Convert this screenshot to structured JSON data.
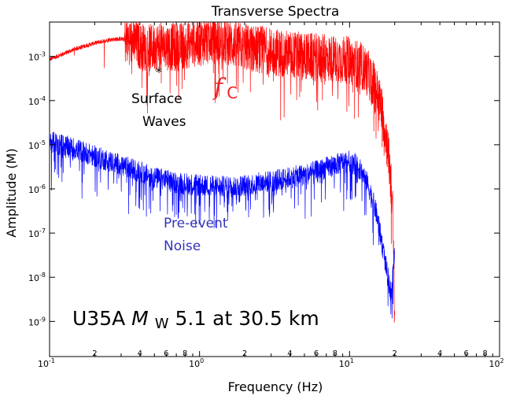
{
  "chart_data": {
    "type": "line",
    "title": "Transverse Spectra",
    "xlabel": "Frequency (Hz)",
    "ylabel": "Amplitude (M)",
    "xscale": "log",
    "yscale": "log",
    "xlim": [
      0.1,
      100
    ],
    "ylim": [
      1.6e-10,
      0.006
    ],
    "grid": false,
    "x_tick_labels": [
      {
        "value": 0.1,
        "base": "10",
        "exp": "-1"
      },
      {
        "value": 1,
        "base": "10",
        "exp": "0"
      },
      {
        "value": 10,
        "base": "10",
        "exp": "1"
      },
      {
        "value": 100,
        "base": "10",
        "exp": "2"
      }
    ],
    "x_minor_labels": [
      {
        "value": 0.2,
        "label": "2"
      },
      {
        "value": 0.4,
        "label": "4"
      },
      {
        "value": 0.6,
        "label": "6"
      },
      {
        "value": 0.8,
        "label": "8"
      },
      {
        "value": 2,
        "label": "2"
      },
      {
        "value": 4,
        "label": "4"
      },
      {
        "value": 6,
        "label": "6"
      },
      {
        "value": 8,
        "label": "8"
      },
      {
        "value": 20,
        "label": "2"
      },
      {
        "value": 40,
        "label": "4"
      },
      {
        "value": 60,
        "label": "6"
      },
      {
        "value": 80,
        "label": "8"
      }
    ],
    "y_tick_labels": [
      {
        "value": 0.001,
        "base": "10",
        "exp": "-3"
      },
      {
        "value": 0.0001,
        "base": "10",
        "exp": "-4"
      },
      {
        "value": 1e-05,
        "base": "10",
        "exp": "-5"
      },
      {
        "value": 1e-06,
        "base": "10",
        "exp": "-6"
      },
      {
        "value": 1e-07,
        "base": "10",
        "exp": "-7"
      },
      {
        "value": 1e-08,
        "base": "10",
        "exp": "-8"
      },
      {
        "value": 1e-09,
        "base": "10",
        "exp": "-9"
      }
    ],
    "series": [
      {
        "color": "#ff0000",
        "x": [
          0.1,
          0.12,
          0.15,
          0.2,
          0.25,
          0.3,
          0.35,
          0.4,
          0.45,
          0.5,
          0.55,
          0.6,
          0.7,
          0.8,
          1.0,
          1.2,
          1.5,
          2.0,
          3.0,
          4.0,
          5.0,
          6.0,
          7.0,
          8.0,
          9.0,
          10.0,
          11.0,
          12.0,
          13.0,
          14.0,
          15.0,
          16.0,
          17.0,
          18.0,
          19.0,
          19.5,
          20.0
        ],
        "y": [
          0.00085,
          0.0011,
          0.0015,
          0.002,
          0.0024,
          0.0025,
          0.0022,
          0.0017,
          0.0015,
          0.0016,
          0.0018,
          0.0017,
          0.0016,
          0.0018,
          0.0021,
          0.0024,
          0.0021,
          0.0016,
          0.0013,
          0.0011,
          0.001,
          0.00095,
          0.0009,
          0.00087,
          0.00085,
          0.0008,
          0.0007,
          0.0006,
          0.00045,
          0.0003,
          0.00018,
          9e-05,
          3e-05,
          8e-06,
          1e-06,
          2e-07,
          1e-09
        ]
      },
      {
        "color": "#0000ff",
        "x": [
          0.1,
          0.12,
          0.15,
          0.2,
          0.3,
          0.4,
          0.5,
          0.7,
          1.0,
          1.5,
          2.0,
          3.0,
          4.0,
          5.0,
          6.0,
          7.0,
          8.0,
          9.0,
          10.0,
          11.0,
          12.0,
          13.0,
          14.0,
          15.0,
          16.0,
          17.0,
          18.0,
          19.0,
          20.0
        ],
        "y": [
          1.2e-05,
          1e-05,
          8e-06,
          5.5e-06,
          3.5e-06,
          2.4e-06,
          1.8e-06,
          1.4e-06,
          1.2e-06,
          1.1e-06,
          1.2e-06,
          1.5e-06,
          1.8e-06,
          2.1e-06,
          2.5e-06,
          3e-06,
          3.5e-06,
          4e-06,
          4.2e-06,
          3.5e-06,
          2.5e-06,
          1.5e-06,
          7e-07,
          3e-07,
          1e-07,
          3e-08,
          1e-08,
          4e-09,
          5e-08
        ]
      }
    ],
    "annotations": {
      "surface_marker": "*",
      "surface_line1": "Surface",
      "surface_line2": "Waves",
      "fc_letter": "f",
      "fc_subscript": "C",
      "noise_line1": "Pre-event",
      "noise_line2": "Noise",
      "station_prefix": "U35A ",
      "station_m": "M",
      "station_w": "W",
      "station_suffix": " 5.1 at 30.5 km"
    },
    "colors": {
      "event": "#ff0000",
      "noise": "#0000ff",
      "fc_label": "#ee2222",
      "noise_label": "#3333bb",
      "axes": "#000000"
    }
  }
}
